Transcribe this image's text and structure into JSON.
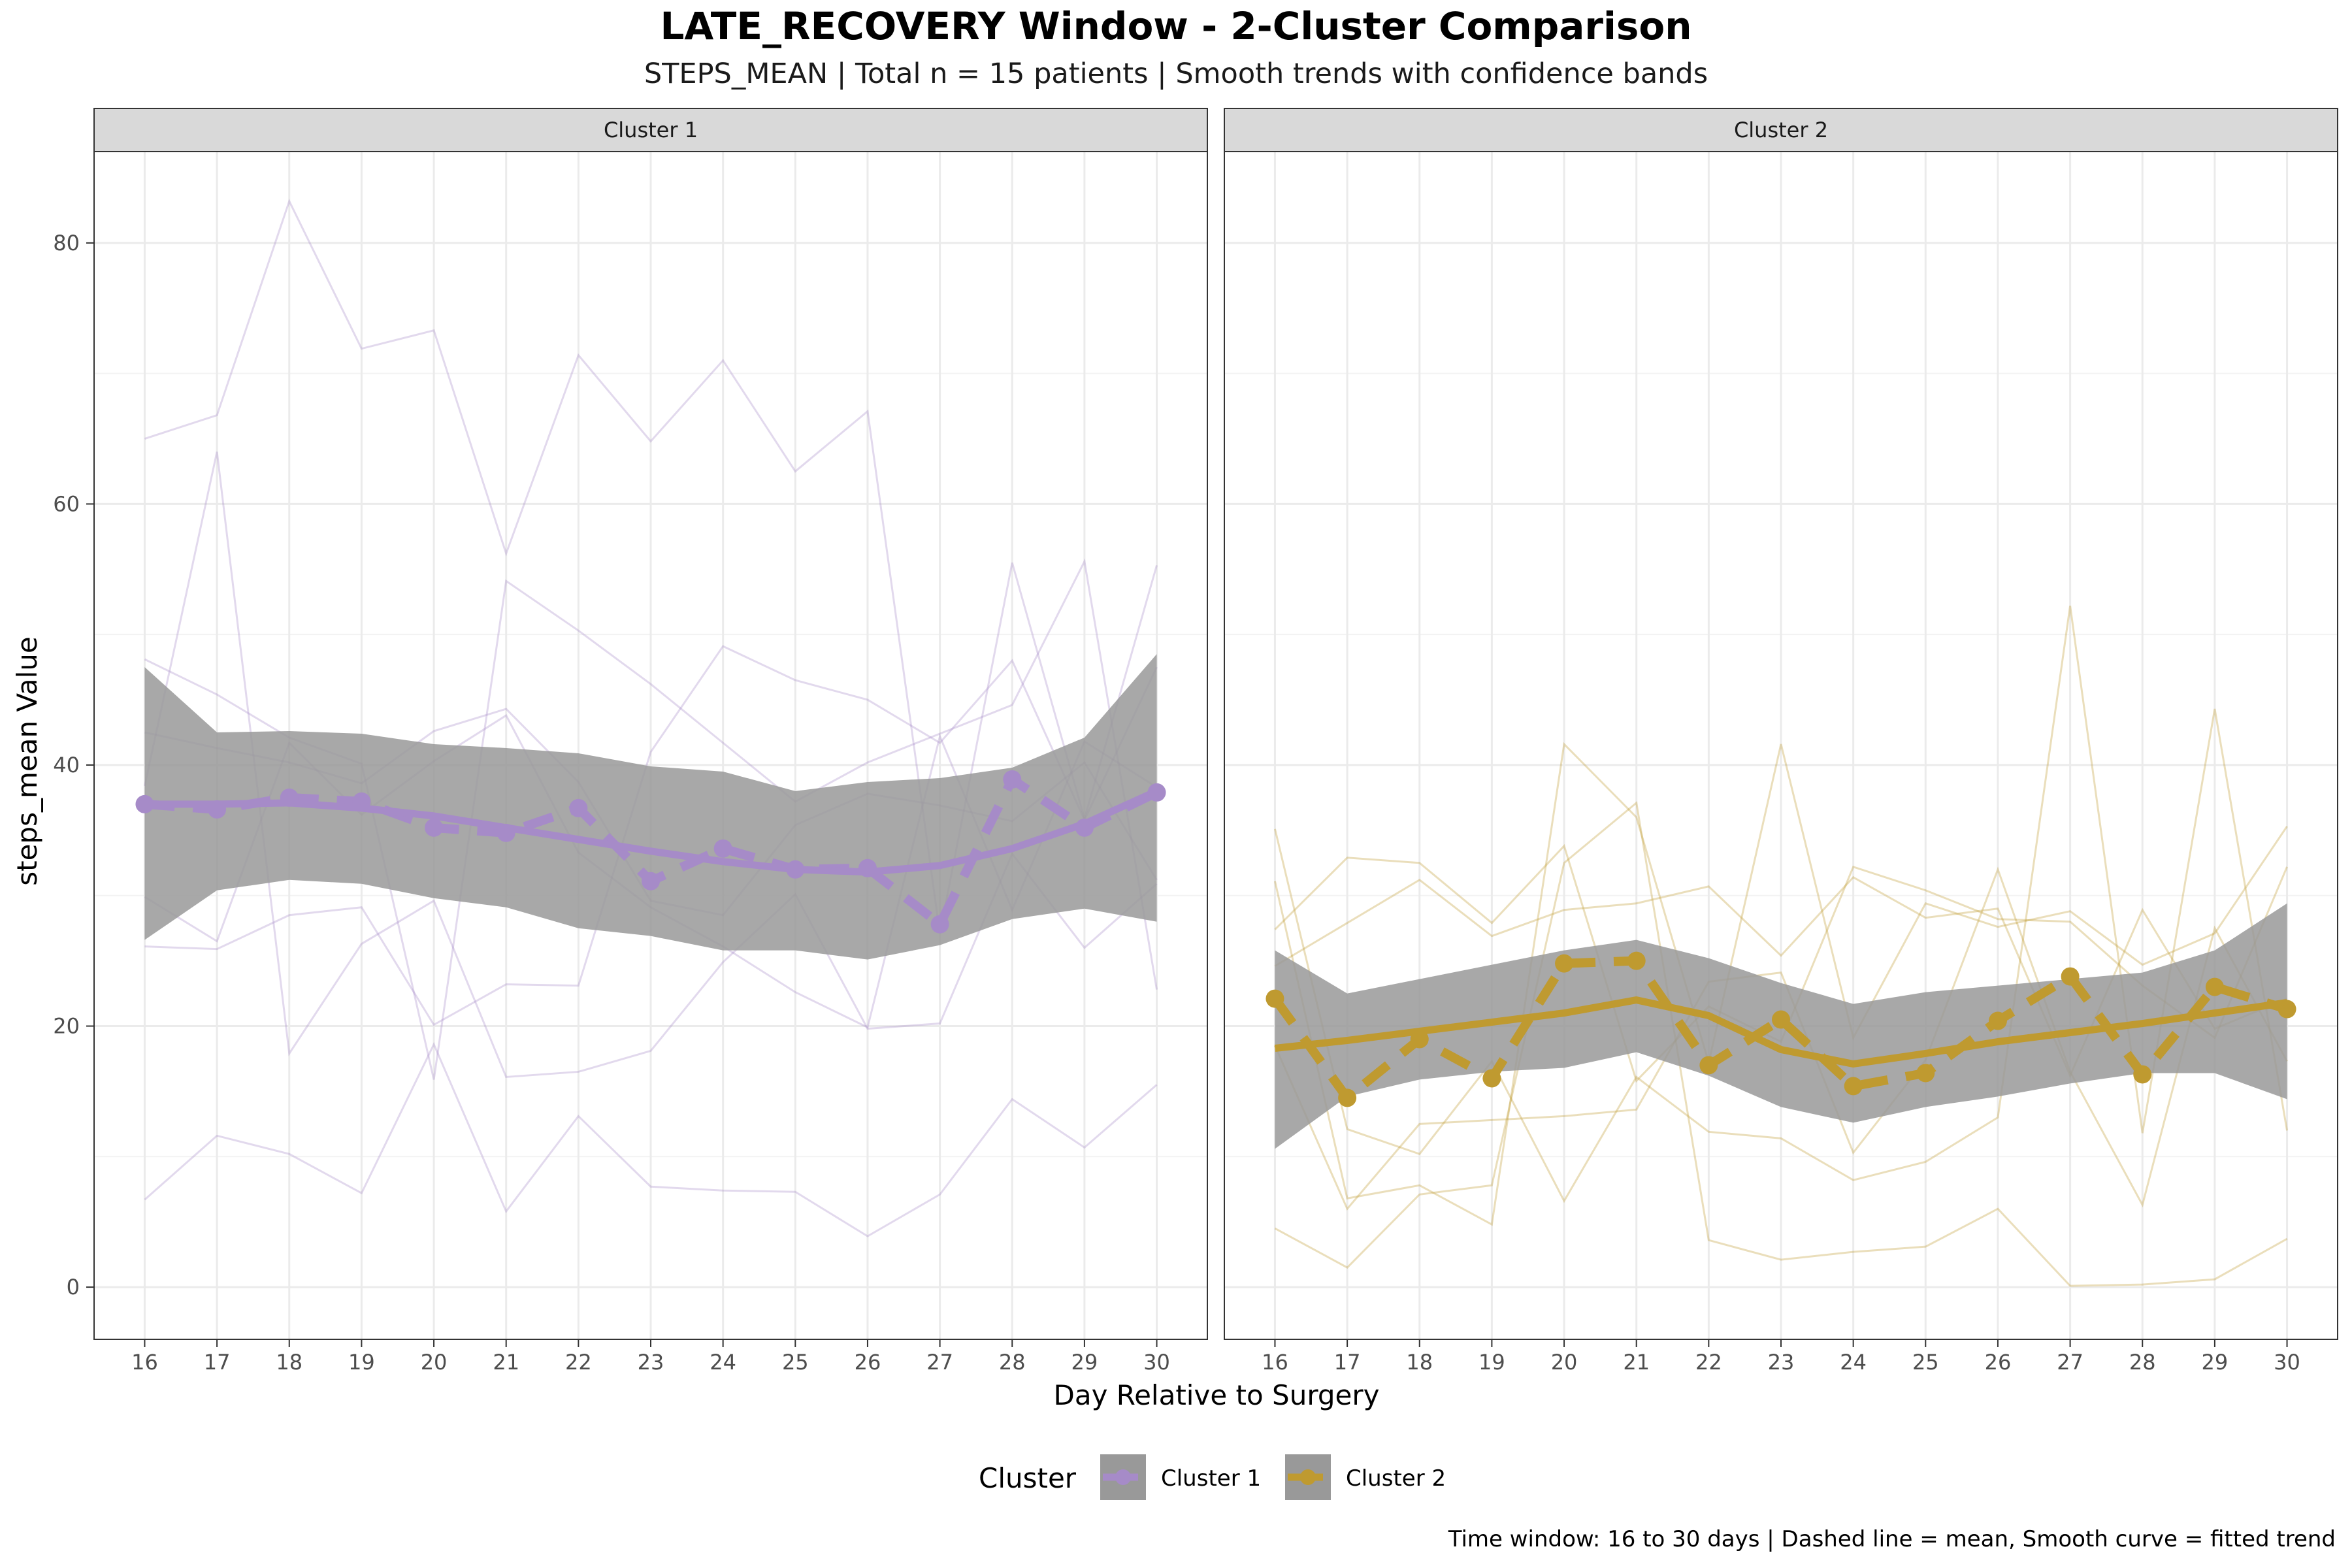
{
  "title": "LATE_RECOVERY Window - 2-Cluster Comparison",
  "subtitle": "STEPS_MEAN | Total n = 15 patients | Smooth trends with confidence bands",
  "caption": "Time window: 16 to 30 days | Dashed line = mean, Smooth curve = fitted trend",
  "colors": {
    "cluster1": "#A68BC8",
    "cluster2": "#BF9A30",
    "band": "#999999",
    "strip": "#D9D9D9",
    "grid": "#EBEBEB"
  },
  "chart_data": {
    "type": "line",
    "title": "LATE_RECOVERY Window - 2-Cluster Comparison",
    "subtitle": "STEPS_MEAN | Total n = 15 patients | Smooth trends with confidence bands",
    "xlabel": "Day Relative to Surgery",
    "ylabel": "steps_mean Value",
    "x": [
      16,
      17,
      18,
      19,
      20,
      21,
      22,
      23,
      24,
      25,
      26,
      27,
      28,
      29,
      30
    ],
    "xlim": [
      15.3,
      30.7
    ],
    "ylim": [
      -4,
      87
    ],
    "yticks": [
      0,
      20,
      40,
      60,
      80
    ],
    "grid": true,
    "legend": {
      "title": "Cluster",
      "placement": "bottom",
      "entries": [
        "Cluster 1",
        "Cluster 2"
      ]
    },
    "panels": [
      {
        "label": "Cluster 1",
        "mean": [
          37.0,
          36.6,
          37.5,
          37.2,
          35.2,
          34.8,
          36.7,
          31.1,
          33.6,
          32.0,
          32.1,
          27.8,
          38.9,
          35.2,
          37.9
        ],
        "smooth": [
          37.0,
          37.0,
          37.1,
          36.7,
          36.1,
          35.2,
          34.3,
          33.4,
          32.6,
          32.0,
          31.8,
          32.3,
          33.6,
          35.5,
          38.0
        ],
        "band_upper": [
          47.5,
          42.5,
          42.6,
          42.4,
          41.6,
          41.3,
          40.9,
          39.9,
          39.5,
          38.0,
          38.7,
          39.0,
          39.8,
          42.1,
          48.5
        ],
        "band_lower": [
          26.6,
          30.4,
          31.2,
          30.9,
          29.8,
          29.1,
          27.5,
          26.9,
          25.8,
          25.8,
          25.1,
          26.2,
          28.2,
          29.0,
          28.0
        ],
        "patients": [
          [
            65,
            66.8,
            83.2,
            71.9,
            73.3,
            56.2,
            71.4,
            64.8,
            71,
            62.5,
            67.1,
            27.1,
            55.5,
            35.9,
            55.3
          ],
          [
            48.1,
            45.4,
            42.1,
            40.1,
            15.9,
            54.1,
            50.3,
            46.2,
            41.7,
            37.2,
            40.2,
            42.4,
            44.6,
            55.6,
            22.8
          ],
          [
            26.1,
            25.9,
            28.5,
            29.1,
            20.1,
            23.2,
            23.1,
            41,
            49.1,
            46.5,
            45,
            41.7,
            48,
            35.8,
            47.5
          ],
          [
            38.4,
            64,
            17.9,
            26.3,
            29.6,
            16.1,
            16.5,
            18.1,
            24.9,
            30.1,
            19.8,
            20.2,
            33.2,
            26,
            30.9
          ],
          [
            6.7,
            11.6,
            10.2,
            7.2,
            18.6,
            5.8,
            13.1,
            7.7,
            7.4,
            7.3,
            3.9,
            7.1,
            14.4,
            10.7,
            15.5
          ],
          [
            42.5,
            41.3,
            40.2,
            38.6,
            42.6,
            44.3,
            38.7,
            29.6,
            28.5,
            35.4,
            37.8,
            36.9,
            35.7,
            40.2,
            31.2
          ],
          [
            29.9,
            26.5,
            41.7,
            36.2,
            40.3,
            43.8,
            33.3,
            29.1,
            26.1,
            22.6,
            19.9,
            42.2,
            28.9,
            41.8,
            38.3
          ]
        ]
      },
      {
        "label": "Cluster 2",
        "mean": [
          22.1,
          14.5,
          19.0,
          16.0,
          24.8,
          25.0,
          17.0,
          20.5,
          15.4,
          16.4,
          20.4,
          23.8,
          16.3,
          23.0,
          21.3
        ],
        "smooth": [
          18.3,
          18.9,
          19.6,
          20.3,
          21.0,
          22.0,
          20.8,
          18.2,
          17.1,
          17.9,
          18.8,
          19.5,
          20.2,
          21.0,
          21.8
        ],
        "band_upper": [
          25.8,
          22.5,
          23.6,
          24.7,
          25.8,
          26.6,
          25.2,
          23.3,
          21.7,
          22.6,
          23.1,
          23.6,
          24.1,
          25.8,
          29.4
        ],
        "band_lower": [
          10.6,
          14.6,
          15.9,
          16.5,
          16.8,
          18.0,
          16.2,
          13.8,
          12.6,
          13.8,
          14.6,
          15.6,
          16.4,
          16.4,
          14.4
        ],
        "patients": [
          [
            35.1,
            12.1,
            10.2,
            17.3,
            6.6,
            16.1,
            11.9,
            11.4,
            8.2,
            9.6,
            13.0,
            52.2,
            11.8,
            44.3,
            12.0
          ],
          [
            31.1,
            6.8,
            7.8,
            4.8,
            41.6,
            36.0,
            17.2,
            41.6,
            19.1,
            29.4,
            27.6,
            28.8,
            24.7,
            27.1,
            35.3
          ],
          [
            4.5,
            1.5,
            7.1,
            7.8,
            32.5,
            37.1,
            3.6,
            2.1,
            2.7,
            3.1,
            6.0,
            0.1,
            0.2,
            0.6,
            3.7
          ],
          [
            27.4,
            32.9,
            32.5,
            27.9,
            33.8,
            15.8,
            21.5,
            18.8,
            32.2,
            30.4,
            28.2,
            28.0,
            23.1,
            19.1,
            32.2
          ],
          [
            24.6,
            27.9,
            31.2,
            26.9,
            28.9,
            29.4,
            30.7,
            25.4,
            31.4,
            28.3,
            29.0,
            16.2,
            28.9,
            19.8,
            22.1
          ],
          [
            18.5,
            6.0,
            12.5,
            12.8,
            13.1,
            13.6,
            23.4,
            24.1,
            10.3,
            17.4,
            32.0,
            16.5,
            6.3,
            27.5,
            17.3
          ]
        ]
      }
    ]
  }
}
